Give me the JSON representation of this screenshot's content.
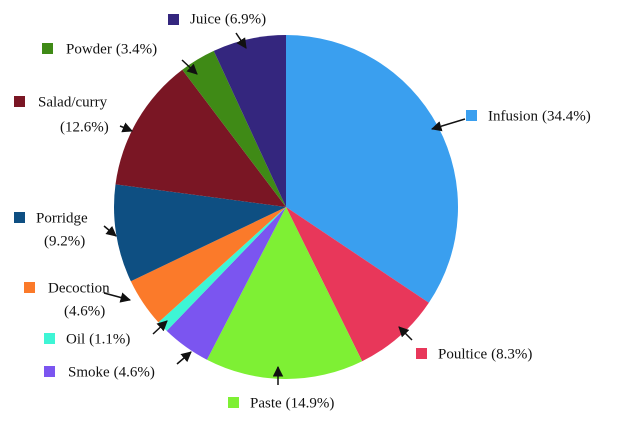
{
  "chart_data": {
    "type": "pie",
    "categories": [
      "Infusion",
      "Poultice",
      "Paste",
      "Smoke",
      "Oil",
      "Decoction",
      "Porridge",
      "Salad/curry",
      "Powder",
      "Juice"
    ],
    "values": [
      34.4,
      8.3,
      14.9,
      4.6,
      1.1,
      4.6,
      9.2,
      12.6,
      3.4,
      6.9
    ],
    "value_labels": [
      "(34.4%)",
      "(8.3%)",
      "(14.9%)",
      "(4.6%)",
      "(1.1%)",
      "(4.6%)",
      "(9.2%)",
      "(12.6%)",
      "(3.4%)",
      "(6.9%)"
    ],
    "colors": [
      "#3a9fef",
      "#e8375a",
      "#7ef034",
      "#7b55f0",
      "#3ef5d5",
      "#fb7a2a",
      "#0e4f82",
      "#7a1624",
      "#3f8a16",
      "#34267e"
    ]
  }
}
